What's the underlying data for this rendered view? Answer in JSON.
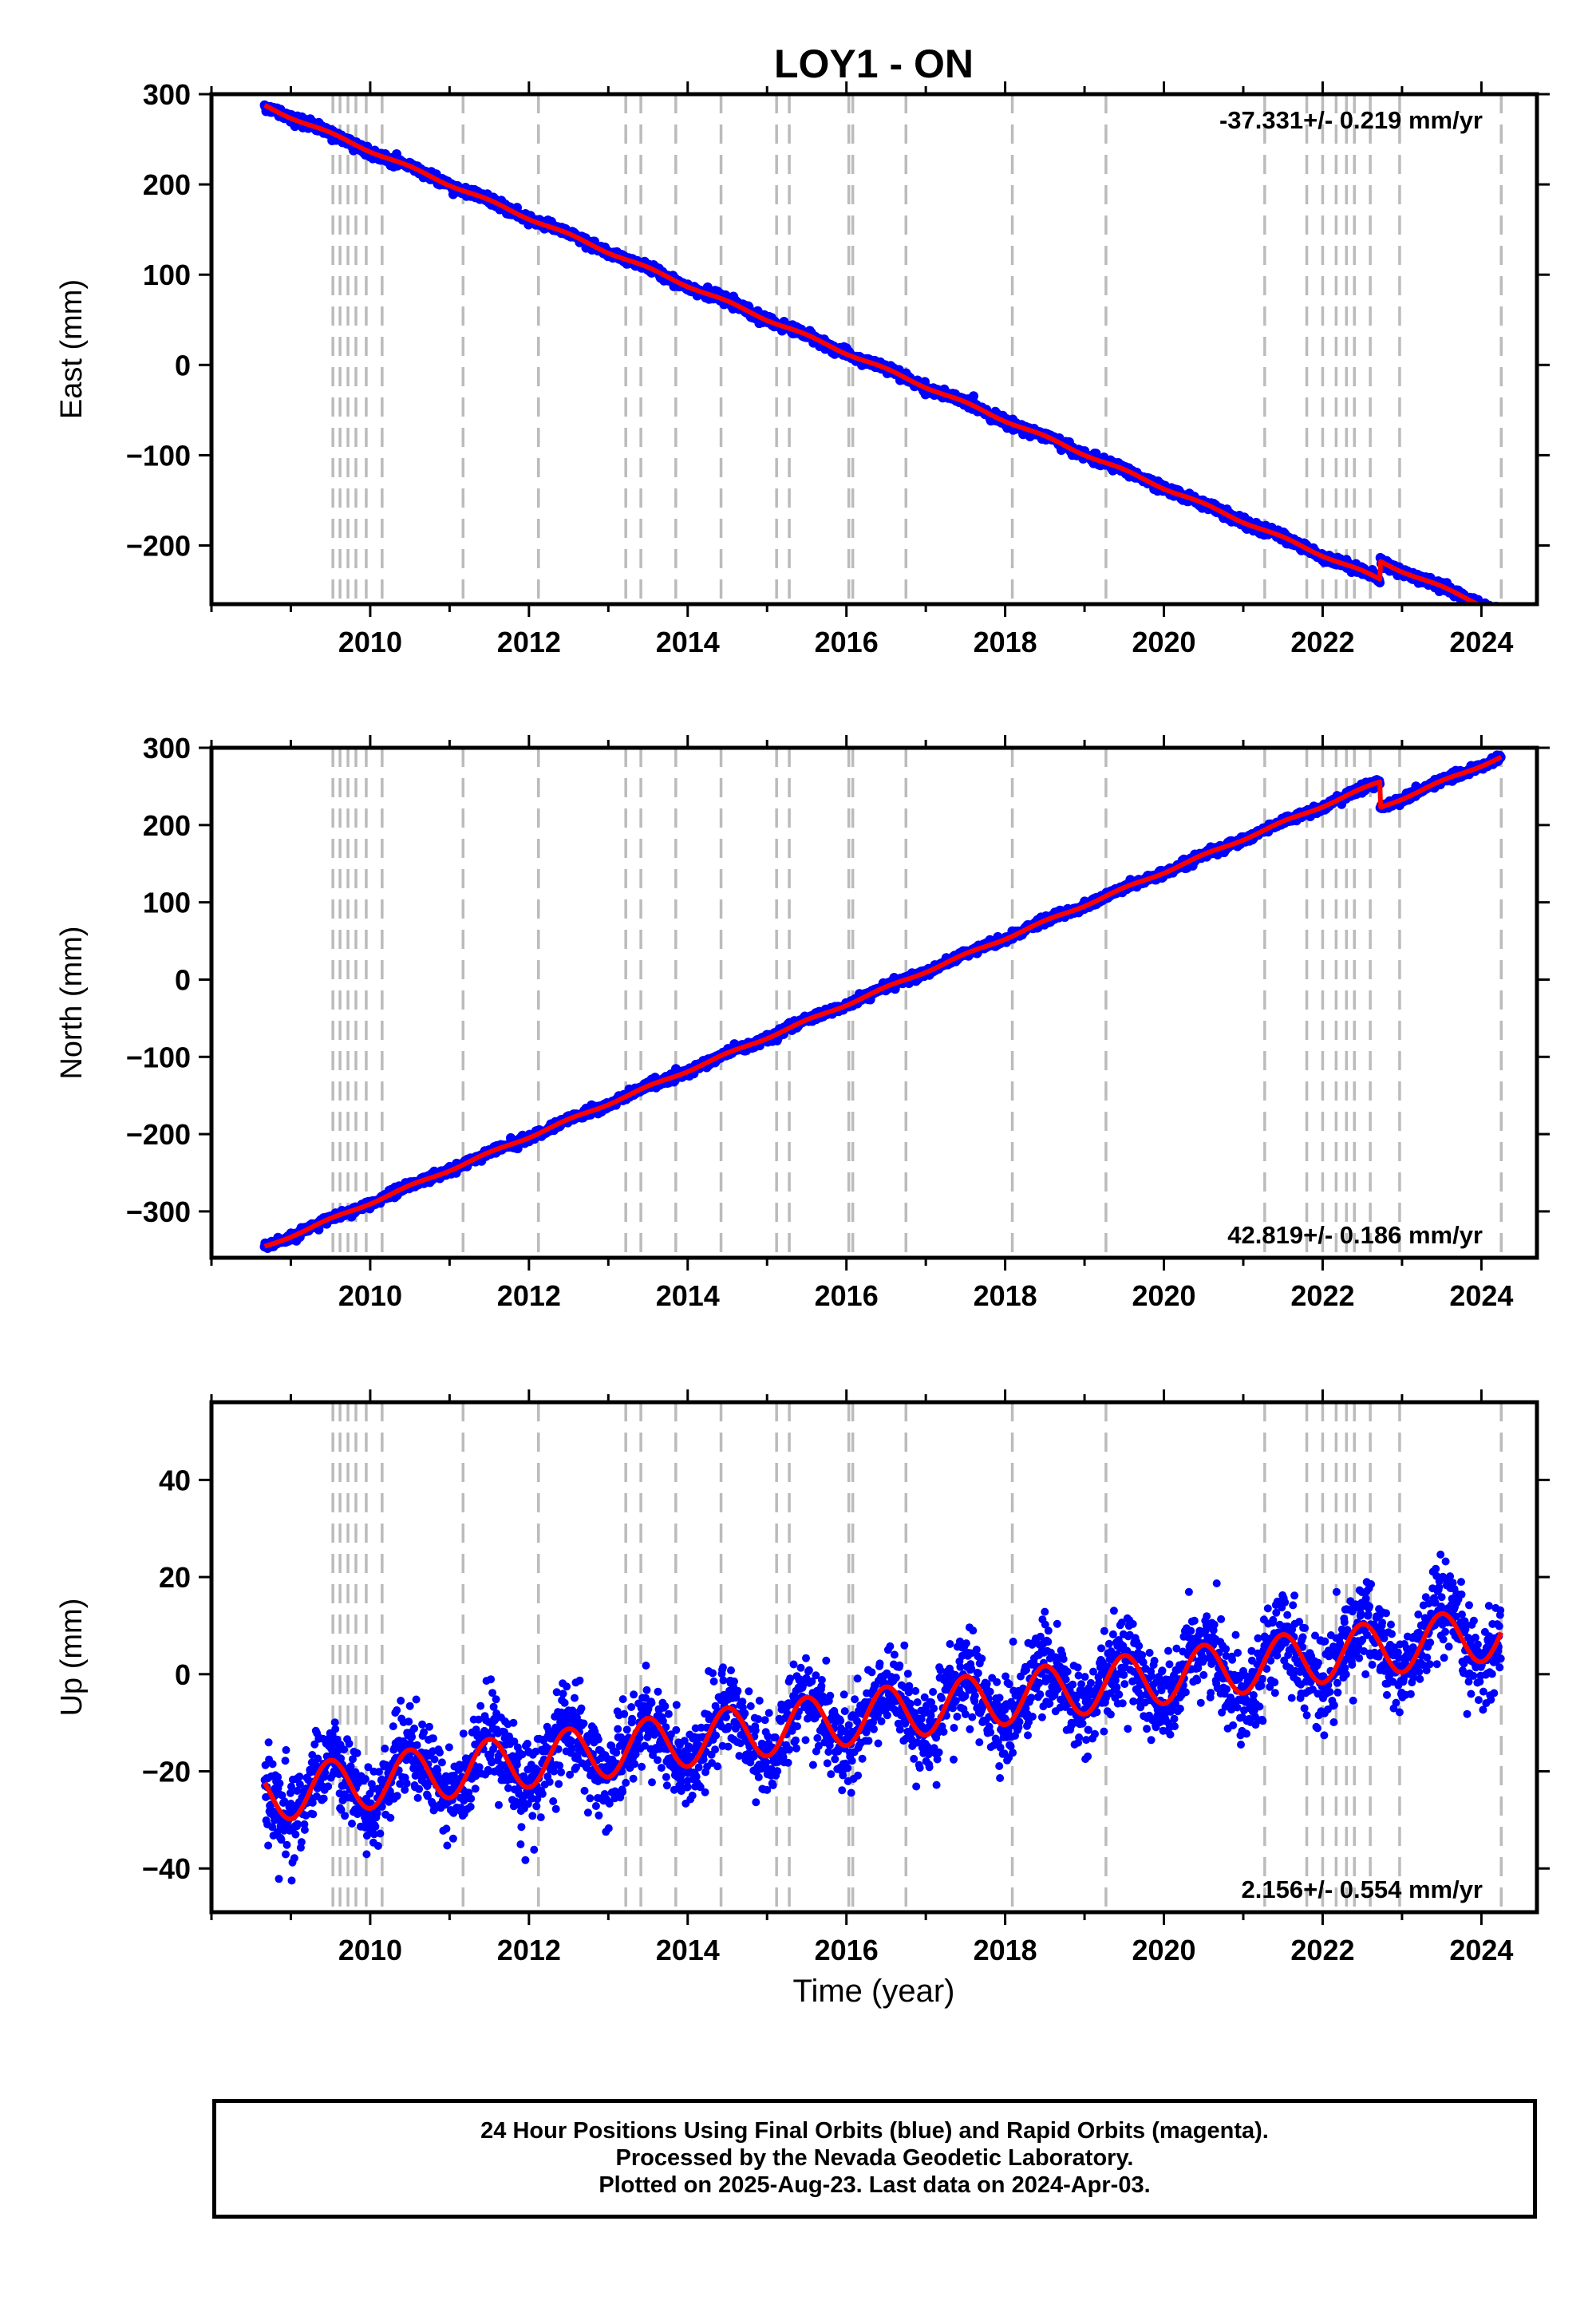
{
  "chart_data": {
    "title": "LOY1 - ON",
    "type": "scatter",
    "colors": {
      "final_orbits": "#0000ff",
      "model_fit": "#ff0000",
      "events": "#bbbbbb"
    },
    "x_ticks": [
      2010,
      2012,
      2014,
      2016,
      2018,
      2020,
      2022,
      2024
    ],
    "xlim": [
      2008.0,
      2024.7
    ],
    "xlabel": "Time (year)",
    "data_start": 2008.67,
    "data_end": 2024.25,
    "event_lines": [
      2009.53,
      2009.62,
      2009.72,
      2009.82,
      2009.95,
      2010.15,
      2011.17,
      2012.12,
      2013.22,
      2013.41,
      2013.85,
      2014.42,
      2015.12,
      2015.28,
      2016.03,
      2016.08,
      2016.75,
      2018.09,
      2019.27,
      2021.27,
      2021.8,
      2022.0,
      2022.17,
      2022.3,
      2022.4,
      2022.6,
      2022.97,
      2024.25
    ],
    "panels": [
      {
        "component": "East",
        "ylabel": "East (mm)",
        "ylim": [
          -265,
          300
        ],
        "y_ticks": [
          300,
          200,
          100,
          0,
          -100,
          -200
        ],
        "y_tick_labels": [
          "300",
          "200",
          "100",
          "0",
          "−100",
          "−200"
        ],
        "rate_text": "-37.331+/- 0.219 mm/yr",
        "rate_position": "top-right",
        "start_value": 287,
        "rate": -37.331,
        "offset_time": 2022.72,
        "offset_size": 20,
        "seasonal_amplitude": 1.5,
        "noise": 2.5
      },
      {
        "component": "North",
        "ylabel": "North (mm)",
        "ylim": [
          -360,
          300
        ],
        "y_ticks": [
          300,
          200,
          100,
          0,
          -100,
          -200,
          -300
        ],
        "y_tick_labels": [
          "300",
          "200",
          "100",
          "0",
          "−100",
          "−200",
          "−300"
        ],
        "rate_text": "42.819+/- 0.186 mm/yr",
        "rate_position": "bottom-right",
        "start_value": -346,
        "rate": 42.819,
        "offset_time": 2022.72,
        "offset_size": -33,
        "seasonal_amplitude": 1.5,
        "noise": 2.5
      },
      {
        "component": "Up",
        "ylabel": "Up (mm)",
        "ylim": [
          -49,
          56
        ],
        "y_ticks": [
          40,
          20,
          0,
          -20,
          -40
        ],
        "y_tick_labels": [
          "40",
          "20",
          "0",
          "−20",
          "−40"
        ],
        "rate_text": "2.156+/- 0.554 mm/yr",
        "rate_position": "bottom-right",
        "start_value": -25,
        "rate": 2.156,
        "offset_time": null,
        "offset_size": 0,
        "seasonal_amplitude": 5.5,
        "noise": 4.5
      }
    ]
  },
  "footer": {
    "line1": "24 Hour Positions Using Final Orbits (blue) and Rapid Orbits (magenta).",
    "line2": "Processed by the Nevada Geodetic Laboratory.",
    "line3": "Plotted on 2025-Aug-23. Last data on 2024-Apr-03."
  }
}
